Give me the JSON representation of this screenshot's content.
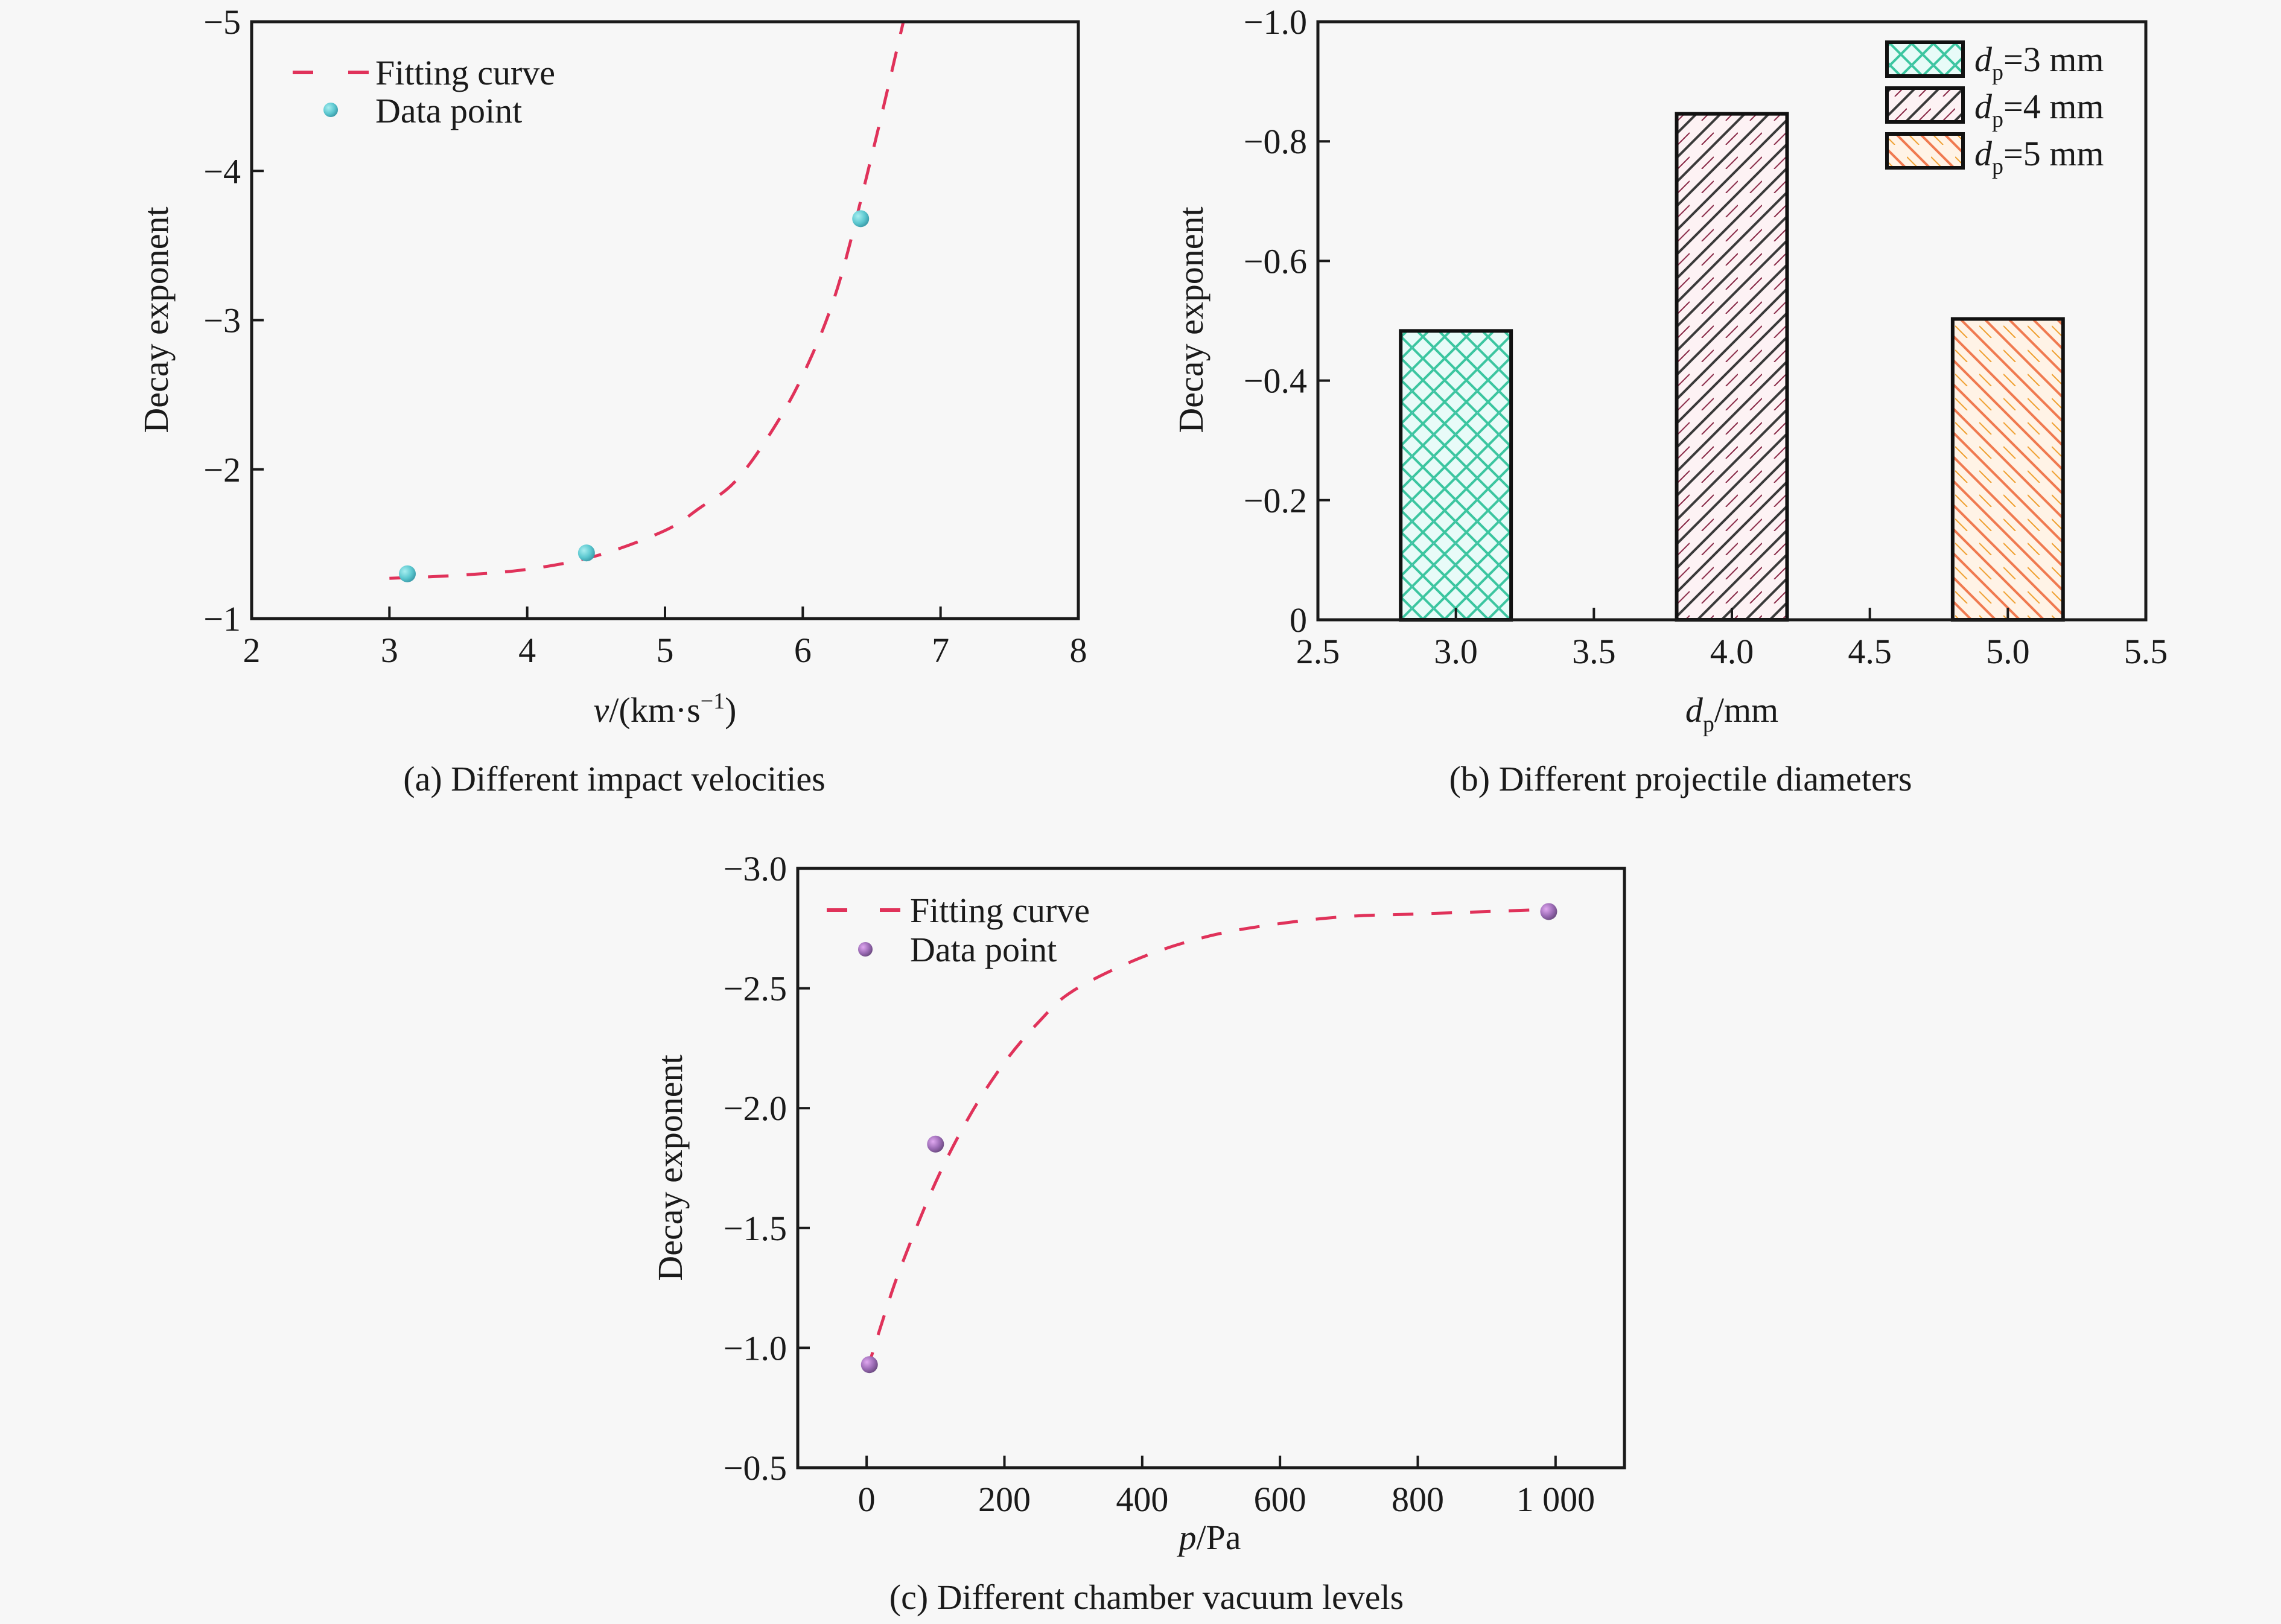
{
  "figure": {
    "background": "#f7f7f7"
  },
  "chart_data": [
    {
      "id": "a",
      "type": "scatter",
      "caption": "(a) Different impact velocities",
      "title": "",
      "xlabel": "v/(km·s⁻¹)",
      "xlabel_var": "v",
      "xlabel_unit": "/(km·s",
      "xlabel_sup": "−1",
      "xlabel_close": ")",
      "ylabel": "Decay exponent",
      "xlim": [
        2,
        8
      ],
      "ylim": [
        -1,
        -5
      ],
      "xticks": [
        2,
        3,
        4,
        5,
        6,
        7,
        8
      ],
      "xtick_labels": [
        "2",
        "3",
        "4",
        "5",
        "6",
        "7",
        "8"
      ],
      "yticks": [
        -1,
        -2,
        -3,
        -4,
        -5
      ],
      "ytick_labels": [
        "−1",
        "−2",
        "−3",
        "−4",
        "−5"
      ],
      "grid": false,
      "legend_position": "top-left",
      "series": [
        {
          "name": "Fitting curve",
          "kind": "dashed-line",
          "color": "#e0325a",
          "x": [
            3.0,
            3.5,
            4.0,
            4.5,
            5.0,
            5.25,
            5.5,
            5.75,
            6.0,
            6.25,
            6.5,
            6.73
          ],
          "y": [
            -1.27,
            -1.29,
            -1.33,
            -1.42,
            -1.59,
            -1.74,
            -1.91,
            -2.22,
            -2.63,
            -3.21,
            -4.1,
            -5.0
          ]
        },
        {
          "name": "Data point",
          "kind": "markers",
          "color": "#5cc8d0",
          "x": [
            3.13,
            4.43,
            6.42
          ],
          "y": [
            -1.3,
            -1.44,
            -3.68
          ]
        }
      ]
    },
    {
      "id": "b",
      "type": "bar",
      "caption": "(b) Different projectile diameters",
      "title": "",
      "xlabel": "dp/mm",
      "xlabel_var": "d",
      "xlabel_sub": "p",
      "xlabel_unit": "/mm",
      "ylabel": "Decay exponent",
      "xlim": [
        2.5,
        5.5
      ],
      "ylim": [
        0,
        -1.0
      ],
      "xticks": [
        2.5,
        3.0,
        3.5,
        4.0,
        4.5,
        5.0,
        5.5
      ],
      "xtick_labels": [
        "2.5",
        "3.0",
        "3.5",
        "4.0",
        "4.5",
        "5.0",
        "5.5"
      ],
      "yticks": [
        0,
        -0.2,
        -0.4,
        -0.6,
        -0.8,
        -1.0
      ],
      "ytick_labels": [
        "0",
        "−0.2",
        "−0.4",
        "−0.6",
        "−0.8",
        "−1.0"
      ],
      "grid": false,
      "legend_position": "top-right",
      "bar_width": 0.4,
      "categories": [
        3.0,
        4.0,
        5.0
      ],
      "values": [
        -0.483,
        -0.846,
        -0.503
      ],
      "series": [
        {
          "name": "dp=3 mm",
          "var": "d",
          "sub": "p",
          "rest": "=3 mm",
          "pattern": "crosshatch",
          "colors": [
            "#3cc6a0",
            "#7fb0e0"
          ],
          "value": -0.483
        },
        {
          "name": "dp=4 mm",
          "var": "d",
          "sub": "p",
          "rest": "=4 mm",
          "pattern": "forward-diagonal",
          "colors": [
            "#3a3a3a",
            "#8a2a48"
          ],
          "value": -0.846
        },
        {
          "name": "dp=5 mm",
          "var": "d",
          "sub": "p",
          "rest": "=5 mm",
          "pattern": "back-diagonal",
          "colors": [
            "#f07a50",
            "#f0a030"
          ],
          "value": -0.503
        }
      ]
    },
    {
      "id": "c",
      "type": "scatter",
      "caption": "(c) Different chamber vacuum levels",
      "title": "",
      "xlabel": "p/Pa",
      "xlabel_var": "p",
      "xlabel_unit": "/Pa",
      "ylabel": "Decay exponent",
      "xlim": [
        -100,
        1100
      ],
      "ylim": [
        -0.5,
        -3.0
      ],
      "xticks": [
        0,
        200,
        400,
        600,
        800,
        1000
      ],
      "xtick_labels": [
        "0",
        "200",
        "400",
        "600",
        "800",
        "1 000"
      ],
      "yticks": [
        -0.5,
        -1.0,
        -1.5,
        -2.0,
        -2.5,
        -3.0
      ],
      "ytick_labels": [
        "−0.5",
        "−1.0",
        "−1.5",
        "−2.0",
        "−2.5",
        "−3.0"
      ],
      "grid": false,
      "legend_position": "top-left",
      "series": [
        {
          "name": "Fitting curve",
          "kind": "dashed-line",
          "color": "#e0325a",
          "x": [
            0,
            25,
            50,
            100,
            150,
            200,
            250,
            300,
            400,
            500,
            600,
            700,
            800,
            900,
            1000
          ],
          "y": [
            -0.9,
            -1.13,
            -1.34,
            -1.69,
            -1.97,
            -2.19,
            -2.36,
            -2.49,
            -2.63,
            -2.72,
            -2.77,
            -2.8,
            -2.81,
            -2.82,
            -2.83
          ]
        },
        {
          "name": "Data point",
          "kind": "markers",
          "color": "#9b6bb5",
          "x": [
            4,
            100,
            990
          ],
          "y": [
            -0.93,
            -1.85,
            -2.82
          ]
        }
      ]
    }
  ]
}
